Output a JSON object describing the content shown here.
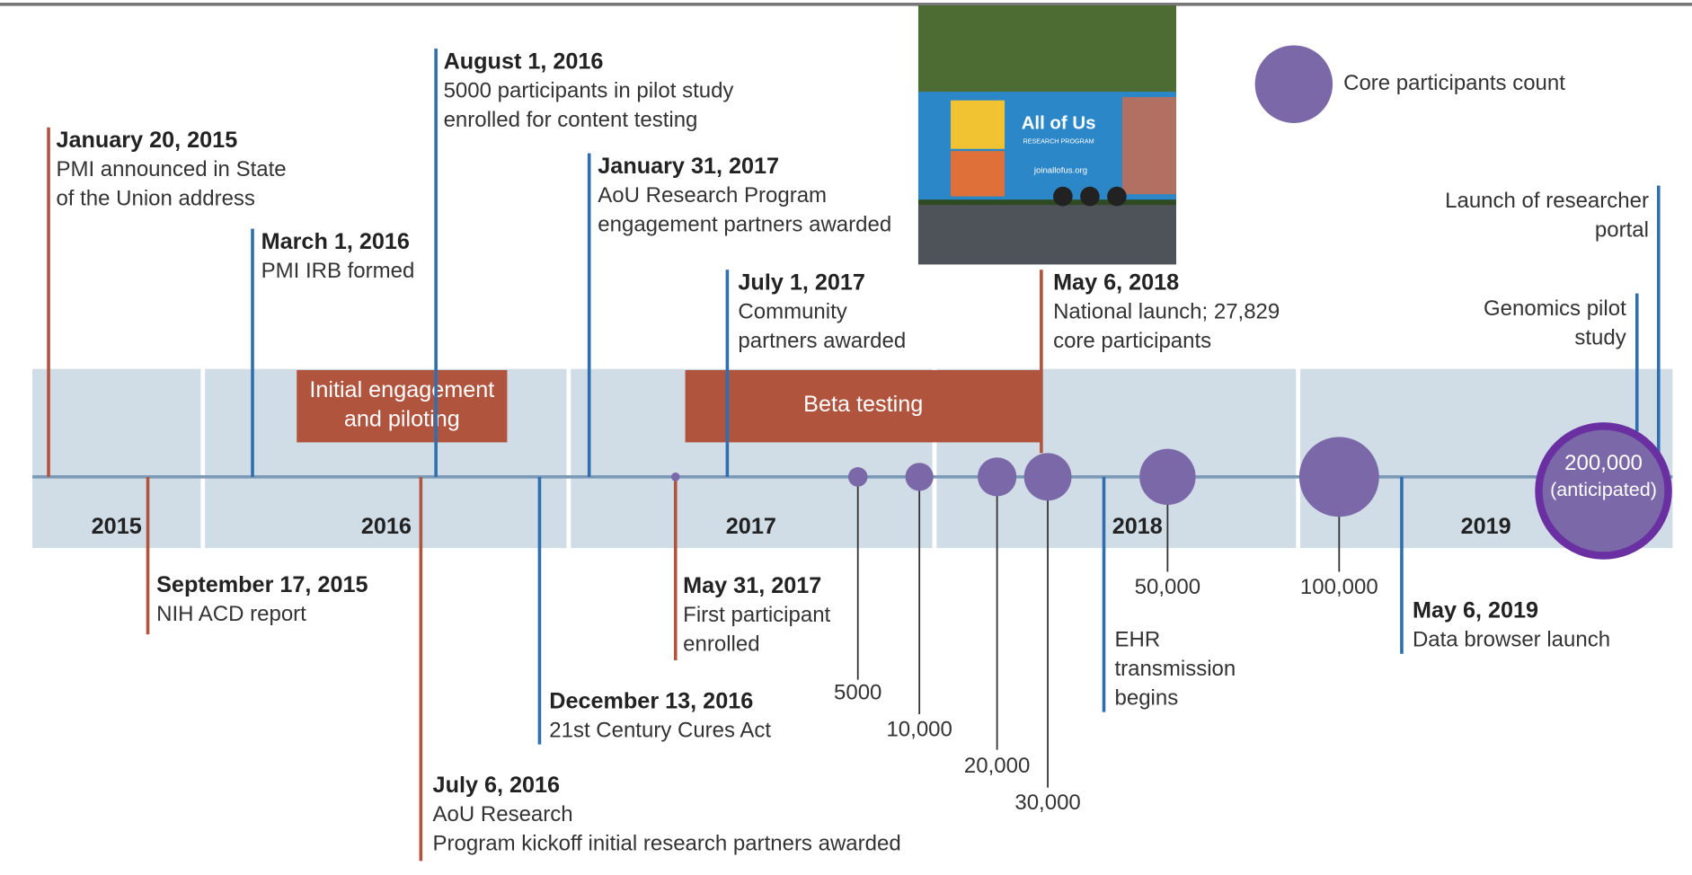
{
  "legend": {
    "label": "Core participants count"
  },
  "years": [
    "2015",
    "2016",
    "2017",
    "2018",
    "2019"
  ],
  "phases": [
    {
      "text": [
        "Initial engagement",
        "and piloting"
      ]
    },
    {
      "text": [
        "Beta testing"
      ]
    }
  ],
  "events": [
    {
      "date": "January 20, 2015",
      "text": [
        "PMI announced in State",
        "of the Union address"
      ]
    },
    {
      "date": "March 1, 2016",
      "text": [
        "PMI IRB formed"
      ]
    },
    {
      "date": "August 1, 2016",
      "text": [
        "5000 participants in pilot study",
        "enrolled for content testing"
      ]
    },
    {
      "date": "January 31, 2017",
      "text": [
        "AoU Research Program",
        "engagement partners awarded"
      ]
    },
    {
      "date": "July 1, 2017",
      "text": [
        "Community",
        "partners awarded"
      ]
    },
    {
      "date": "May 6, 2018",
      "text": [
        "National launch; 27,829",
        "core participants"
      ]
    },
    {
      "text": [
        "Launch of researcher",
        "portal"
      ]
    },
    {
      "text": [
        "Genomics pilot",
        "study"
      ]
    },
    {
      "date": "September 17, 2015",
      "text": [
        "NIH ACD report"
      ]
    },
    {
      "date": "July 6, 2016",
      "text": [
        "AoU Research",
        "Program kickoff initial research partners awarded"
      ]
    },
    {
      "date": "December 13, 2016",
      "text": [
        "21st Century Cures Act"
      ]
    },
    {
      "date": "May 31, 2017",
      "text": [
        "First participant",
        "enrolled"
      ]
    },
    {
      "text": [
        "EHR",
        "transmission",
        "begins"
      ]
    },
    {
      "date": "May 6, 2019",
      "text": [
        "Data browser launch"
      ]
    }
  ],
  "milestones": [
    {
      "label": "5000"
    },
    {
      "label": "10,000"
    },
    {
      "label": "20,000"
    },
    {
      "label": "30,000"
    },
    {
      "label": "50,000"
    },
    {
      "label": "100,000"
    },
    {
      "label": "200,000",
      "note": "(anticipated)"
    }
  ],
  "photo": {
    "sign": "All of Us",
    "subsign": "RESEARCH PROGRAM",
    "url": "joinallofus.org"
  }
}
